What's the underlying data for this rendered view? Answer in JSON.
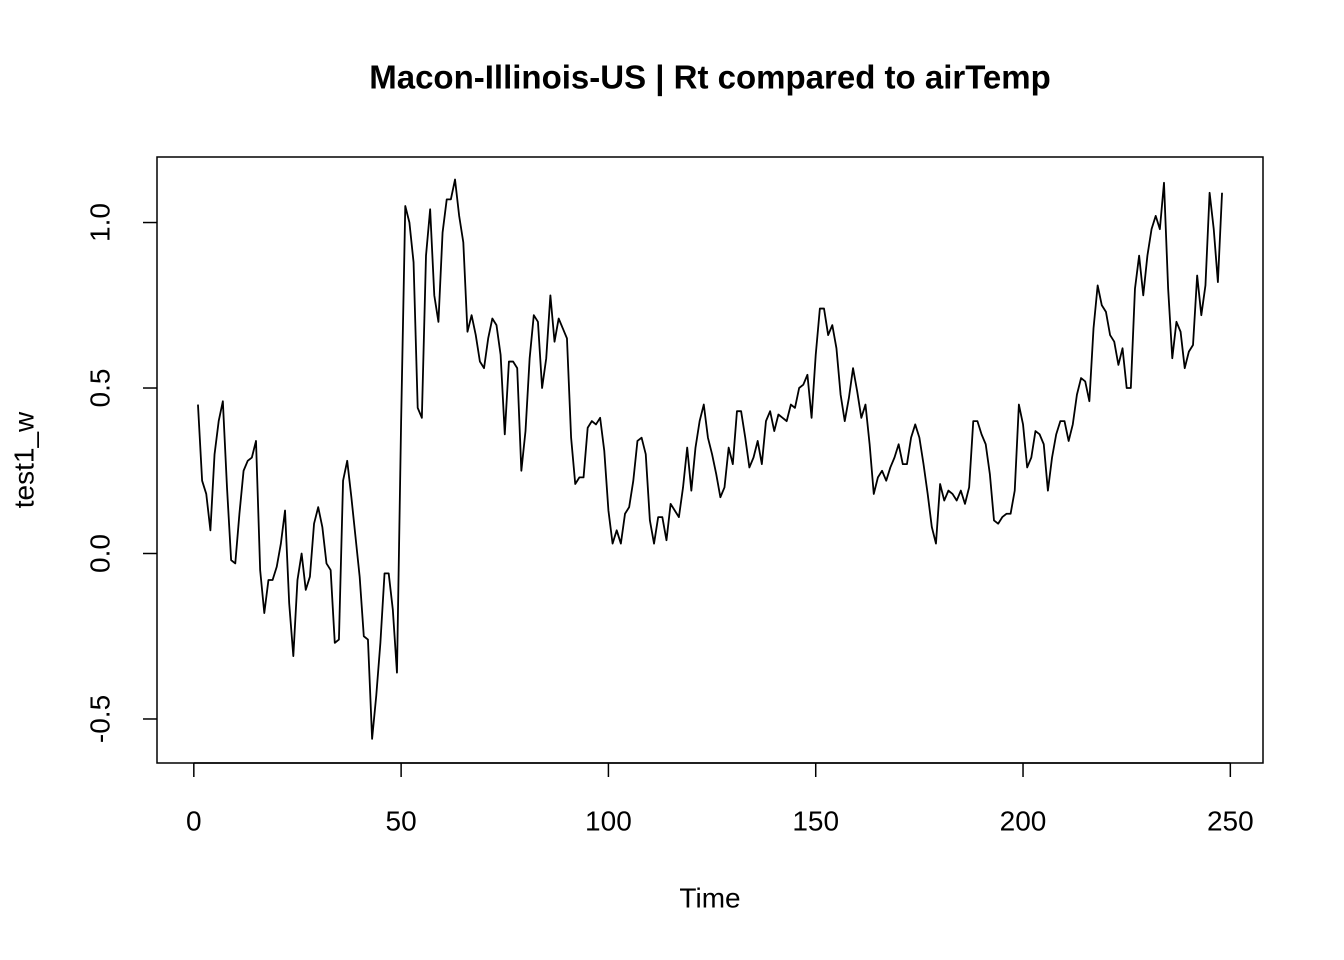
{
  "chart_data": {
    "type": "line",
    "title": "Macon-Illinois-US | Rt compared to airTemp",
    "x_label": "Time",
    "y_label": "test1_w",
    "color": "#000000",
    "xlim": [
      -8.88,
      257.88
    ],
    "ylim": [
      -0.633,
      1.198
    ],
    "xticks": [
      0,
      50,
      100,
      150,
      200,
      250
    ],
    "yticks": [
      -0.5,
      {
        "value": 0,
        "label": "0.0"
      },
      0.5,
      {
        "value": 1,
        "label": "1.0"
      }
    ],
    "x": [
      1,
      2,
      3,
      4,
      5,
      6,
      7,
      8,
      9,
      10,
      11,
      12,
      13,
      14,
      15,
      16,
      17,
      18,
      19,
      20,
      21,
      22,
      23,
      24,
      25,
      26,
      27,
      28,
      29,
      30,
      31,
      32,
      33,
      34,
      35,
      36,
      37,
      38,
      39,
      40,
      41,
      42,
      43,
      44,
      45,
      46,
      47,
      48,
      49,
      50,
      51,
      52,
      53,
      54,
      55,
      56,
      57,
      58,
      59,
      60,
      61,
      62,
      63,
      64,
      65,
      66,
      67,
      68,
      69,
      70,
      71,
      72,
      73,
      74,
      75,
      76,
      77,
      78,
      79,
      80,
      81,
      82,
      83,
      84,
      85,
      86,
      87,
      88,
      89,
      90,
      91,
      92,
      93,
      94,
      95,
      96,
      97,
      98,
      99,
      100,
      101,
      102,
      103,
      104,
      105,
      106,
      107,
      108,
      109,
      110,
      111,
      112,
      113,
      114,
      115,
      116,
      117,
      118,
      119,
      120,
      121,
      122,
      123,
      124,
      125,
      126,
      127,
      128,
      129,
      130,
      131,
      132,
      133,
      134,
      135,
      136,
      137,
      138,
      139,
      140,
      141,
      142,
      143,
      144,
      145,
      146,
      147,
      148,
      149,
      150,
      151,
      152,
      153,
      154,
      155,
      156,
      157,
      158,
      159,
      160,
      161,
      162,
      163,
      164,
      165,
      166,
      167,
      168,
      169,
      170,
      171,
      172,
      173,
      174,
      175,
      176,
      177,
      178,
      179,
      180,
      181,
      182,
      183,
      184,
      185,
      186,
      187,
      188,
      189,
      190,
      191,
      192,
      193,
      194,
      195,
      196,
      197,
      198,
      199,
      200,
      201,
      202,
      203,
      204,
      205,
      206,
      207,
      208,
      209,
      210,
      211,
      212,
      213,
      214,
      215,
      216,
      217,
      218,
      219,
      220,
      221,
      222,
      223,
      224,
      225,
      226,
      227,
      228,
      229,
      230,
      231,
      232,
      233,
      234,
      235,
      236,
      237,
      238,
      239,
      240,
      241,
      242,
      243,
      244,
      245,
      246,
      247,
      248
    ],
    "values": [
      0.45,
      0.22,
      0.18,
      0.07,
      0.3,
      0.4,
      0.46,
      0.2,
      -0.02,
      -0.03,
      0.12,
      0.25,
      0.28,
      0.29,
      0.34,
      -0.05,
      -0.18,
      -0.08,
      -0.08,
      -0.04,
      0.03,
      0.13,
      -0.15,
      -0.31,
      -0.08,
      0.0,
      -0.11,
      -0.07,
      0.09,
      0.14,
      0.08,
      -0.03,
      -0.05,
      -0.27,
      -0.26,
      0.22,
      0.28,
      0.17,
      0.05,
      -0.07,
      -0.25,
      -0.26,
      -0.56,
      -0.43,
      -0.27,
      -0.06,
      -0.06,
      -0.17,
      -0.36,
      0.4,
      1.05,
      1.0,
      0.88,
      0.44,
      0.41,
      0.9,
      1.04,
      0.78,
      0.7,
      0.97,
      1.07,
      1.07,
      1.13,
      1.02,
      0.94,
      0.67,
      0.72,
      0.66,
      0.58,
      0.56,
      0.65,
      0.71,
      0.69,
      0.6,
      0.36,
      0.58,
      0.58,
      0.56,
      0.25,
      0.37,
      0.59,
      0.72,
      0.7,
      0.5,
      0.59,
      0.78,
      0.64,
      0.71,
      0.68,
      0.65,
      0.35,
      0.21,
      0.23,
      0.23,
      0.38,
      0.4,
      0.39,
      0.41,
      0.31,
      0.13,
      0.03,
      0.07,
      0.03,
      0.12,
      0.14,
      0.22,
      0.34,
      0.35,
      0.3,
      0.1,
      0.03,
      0.11,
      0.11,
      0.04,
      0.15,
      0.13,
      0.11,
      0.2,
      0.32,
      0.19,
      0.32,
      0.4,
      0.45,
      0.35,
      0.3,
      0.24,
      0.17,
      0.2,
      0.32,
      0.27,
      0.43,
      0.43,
      0.35,
      0.26,
      0.29,
      0.34,
      0.27,
      0.4,
      0.43,
      0.37,
      0.42,
      0.41,
      0.4,
      0.45,
      0.44,
      0.5,
      0.51,
      0.54,
      0.41,
      0.6,
      0.74,
      0.74,
      0.66,
      0.69,
      0.62,
      0.48,
      0.4,
      0.47,
      0.56,
      0.49,
      0.41,
      0.45,
      0.33,
      0.18,
      0.23,
      0.25,
      0.22,
      0.26,
      0.29,
      0.33,
      0.27,
      0.27,
      0.35,
      0.39,
      0.35,
      0.27,
      0.18,
      0.08,
      0.03,
      0.21,
      0.16,
      0.19,
      0.18,
      0.16,
      0.19,
      0.15,
      0.2,
      0.4,
      0.4,
      0.36,
      0.33,
      0.24,
      0.1,
      0.09,
      0.11,
      0.12,
      0.12,
      0.19,
      0.45,
      0.39,
      0.26,
      0.29,
      0.37,
      0.36,
      0.33,
      0.19,
      0.29,
      0.36,
      0.4,
      0.4,
      0.34,
      0.39,
      0.48,
      0.53,
      0.52,
      0.46,
      0.68,
      0.81,
      0.75,
      0.73,
      0.66,
      0.64,
      0.57,
      0.62,
      0.5,
      0.5,
      0.8,
      0.9,
      0.78,
      0.9,
      0.98,
      1.02,
      0.98,
      1.12,
      0.8,
      0.59,
      0.7,
      0.67,
      0.56,
      0.61,
      0.63,
      0.84,
      0.72,
      0.81,
      1.09,
      0.98,
      0.82,
      1.09
    ]
  }
}
